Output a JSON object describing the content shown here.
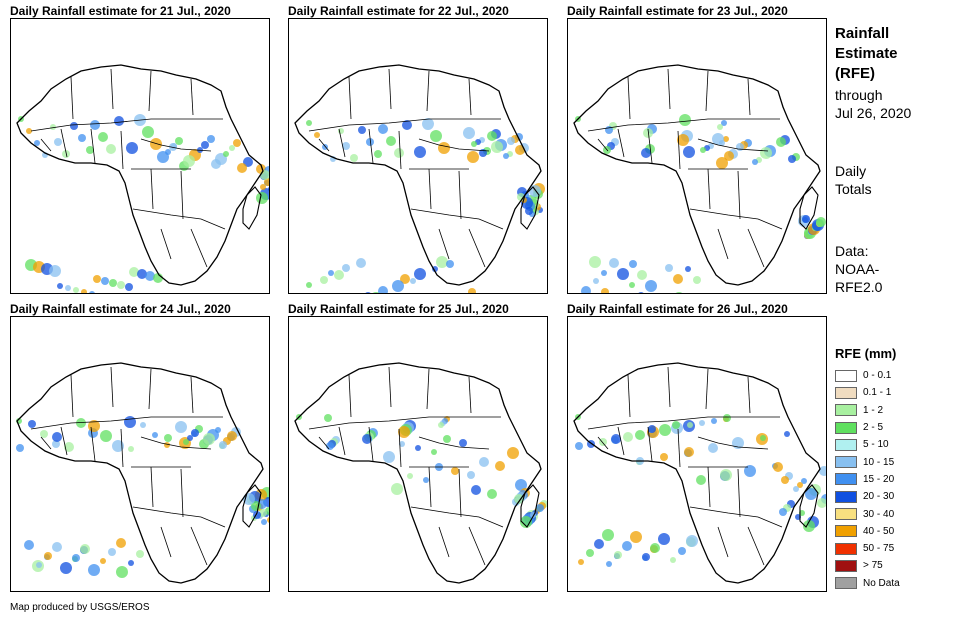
{
  "panels": [
    {
      "title": "Daily Rainfall estimate for 21 Jul., 2020"
    },
    {
      "title": "Daily Rainfall estimate for 22 Jul., 2020"
    },
    {
      "title": "Daily Rainfall estimate for 23 Jul., 2020"
    },
    {
      "title": "Daily Rainfall estimate for 24 Jul., 2020"
    },
    {
      "title": "Daily Rainfall estimate for 25 Jul., 2020"
    },
    {
      "title": "Daily Rainfall estimate for 26 Jul., 2020"
    }
  ],
  "sidebar": {
    "title_lines": [
      "Rainfall",
      "Estimate",
      "(RFE)"
    ],
    "through_lines": [
      "through",
      "Jul 26, 2020"
    ],
    "daily_lines": [
      "Daily",
      "Totals"
    ],
    "data_lines": [
      "Data:",
      "NOAA-",
      "RFE2.0"
    ]
  },
  "legend": {
    "title": "RFE (mm)",
    "items": [
      {
        "label": "0 - 0.1",
        "color": "#ffffff"
      },
      {
        "label": "0.1 - 1",
        "color": "#f0dcc0"
      },
      {
        "label": "1 - 2",
        "color": "#a8f0a0"
      },
      {
        "label": "2 - 5",
        "color": "#60e060"
      },
      {
        "label": "5 - 10",
        "color": "#b0f0f0"
      },
      {
        "label": "10 - 15",
        "color": "#88c0f0"
      },
      {
        "label": "15 - 20",
        "color": "#4090f0"
      },
      {
        "label": "20 - 30",
        "color": "#1050e0"
      },
      {
        "label": "30 - 40",
        "color": "#f8e080"
      },
      {
        "label": "40 - 50",
        "color": "#f0a000"
      },
      {
        "label": "50 - 75",
        "color": "#f03000"
      },
      {
        "label": "> 75",
        "color": "#a01010"
      },
      {
        "label": "No Data",
        "color": "#a0a0a0"
      }
    ]
  },
  "credit": "Map produced by USGS/EROS"
}
